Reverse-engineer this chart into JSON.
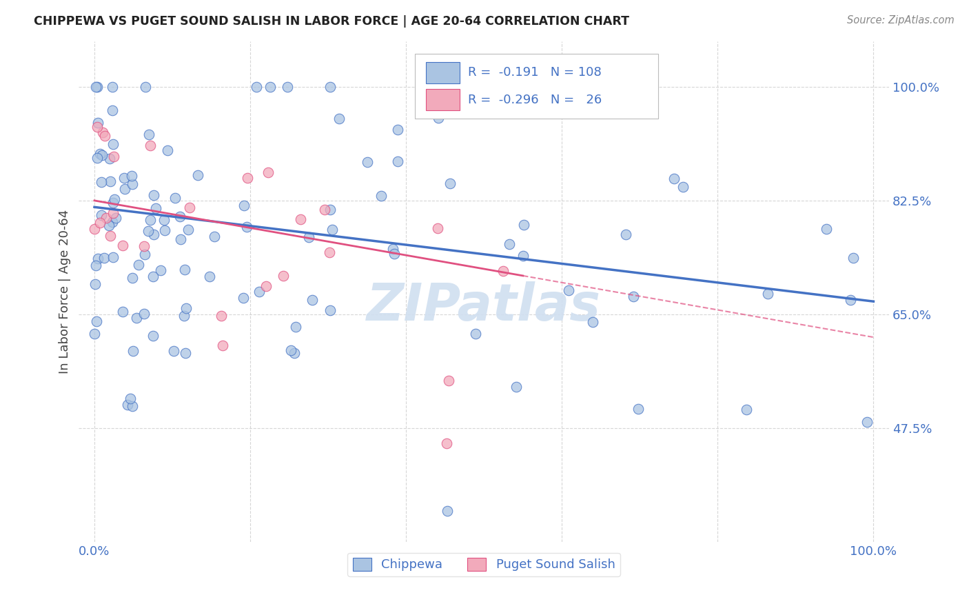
{
  "title": "CHIPPEWA VS PUGET SOUND SALISH IN LABOR FORCE | AGE 20-64 CORRELATION CHART",
  "source": "Source: ZipAtlas.com",
  "ylabel": "In Labor Force | Age 20-64",
  "xlim": [
    -0.02,
    1.02
  ],
  "ylim": [
    0.3,
    1.07
  ],
  "yticks": [
    0.475,
    0.65,
    0.825,
    1.0
  ],
  "ytick_labels": [
    "47.5%",
    "65.0%",
    "82.5%",
    "100.0%"
  ],
  "xticks": [
    0.0,
    0.2,
    0.4,
    0.6,
    0.8,
    1.0
  ],
  "xtick_labels": [
    "0.0%",
    "",
    "",
    "",
    "",
    "100.0%"
  ],
  "legend_R1": "-0.191",
  "legend_N1": "108",
  "legend_R2": "-0.296",
  "legend_N2": "26",
  "chippewa_color": "#aac4e2",
  "salish_color": "#f2aabb",
  "line_color_chippewa": "#4472c4",
  "line_color_salish": "#e05080",
  "legend_label1": "Chippewa",
  "legend_label2": "Puget Sound Salish",
  "background_color": "#ffffff",
  "grid_color": "#cccccc",
  "title_color": "#222222",
  "axis_label_color": "#444444",
  "tick_label_color": "#4472c4",
  "watermark": "ZIPatlas",
  "watermark_color": "#d0dff0",
  "line_intercept_chip": 0.815,
  "line_slope_chip": -0.145,
  "line_intercept_sal": 0.825,
  "line_slope_sal": -0.21,
  "line_sal_solid_end": 0.55
}
